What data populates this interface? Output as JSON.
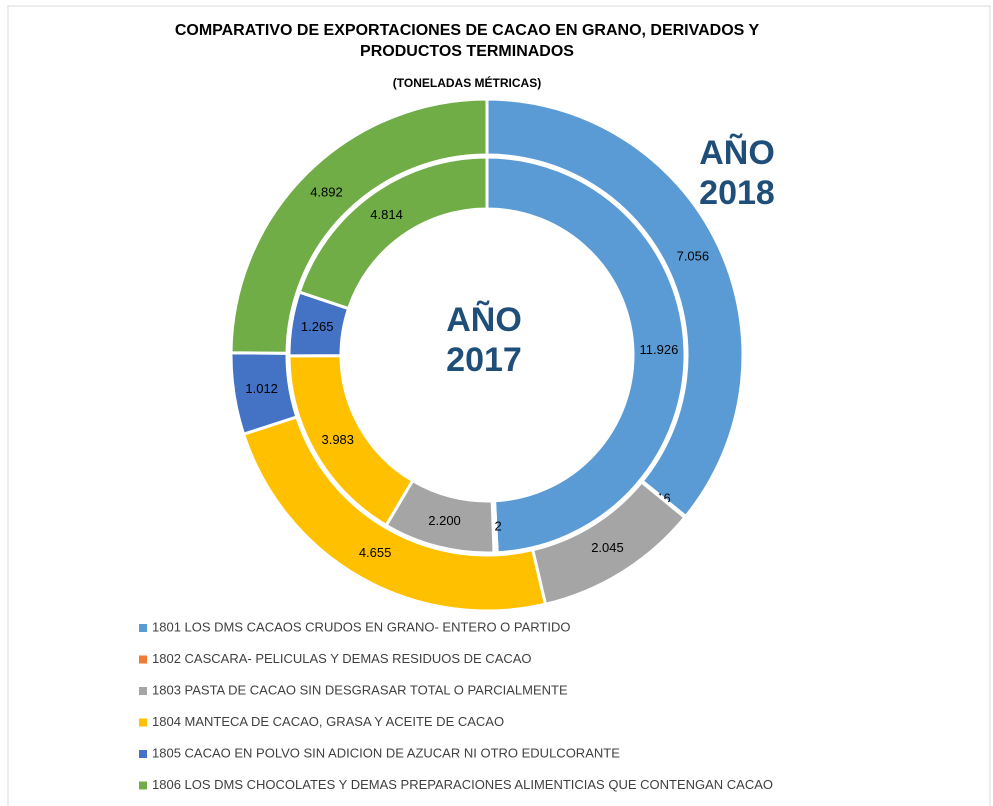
{
  "chart_data": {
    "type": "doughnut",
    "title": "COMPARATIVO DE EXPORTACIONES DE CACAO EN GRANO, DERIVADOS Y PRODUCTOS TERMINADOS",
    "subtitle": "(TONELADAS MÉTRICAS)",
    "categories": [
      "1801 LOS DMS CACAOS CRUDOS EN GRANO- ENTERO O PARTIDO",
      "1802 CASCARA- PELICULAS Y DEMAS RESIDUOS DE CACAO",
      "1803 PASTA DE CACAO SIN DESGRASAR TOTAL O PARCIALMENTE",
      "1804 MANTECA DE CACAO, GRASA Y ACEITE DE CACAO",
      "1805 CACAO EN POLVO SIN ADICION DE AZUCAR NI OTRO EDULCORANTE",
      "1806 LOS DMS CHOCOLATES Y DEMAS PREPARACIONES ALIMENTICIAS QUE CONTENGAN CACAO"
    ],
    "colors": [
      "#5b9bd5",
      "#ed7d31",
      "#a5a5a5",
      "#ffc000",
      "#4472c4",
      "#70ad47"
    ],
    "series": [
      {
        "name": "AÑO 2017",
        "values": [
          11926,
          62,
          2200,
          3983,
          1265,
          4814
        ],
        "value_labels": [
          "11.926",
          "62",
          "2.200",
          "3.983",
          "1.265",
          "4.814"
        ]
      },
      {
        "name": "AÑO 2018",
        "values": [
          7056,
          16,
          2045,
          4655,
          1012,
          4892
        ],
        "value_labels": [
          "7.056",
          "16",
          "2.045",
          "4.655",
          "1.012",
          "4.892"
        ]
      }
    ]
  }
}
